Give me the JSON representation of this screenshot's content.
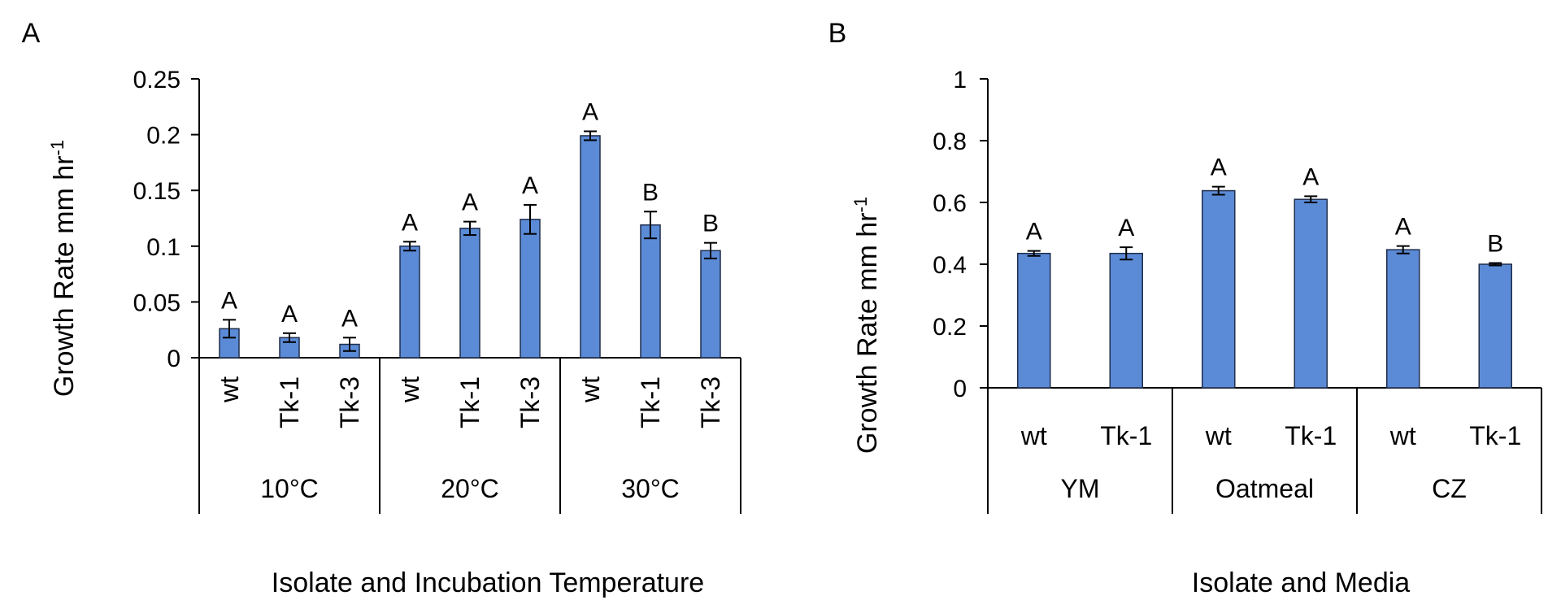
{
  "chart_data": [
    {
      "panel_label": "A",
      "type": "bar",
      "ylabel": "Growth Rate mm hr",
      "ylabel_sup": "-1",
      "xlabel": "Isolate and Incubation Temperature",
      "ylim": [
        0,
        0.25
      ],
      "yticks": [
        0,
        0.05,
        0.1,
        0.15,
        0.2,
        0.25
      ],
      "ytick_labels": [
        "0",
        "0.05",
        "0.1",
        "0.15",
        "0.2",
        "0.25"
      ],
      "groups": [
        {
          "label": "10°C",
          "bars": [
            {
              "category": "wt",
              "value": 0.026,
              "error": 0.008,
              "letter": "A"
            },
            {
              "category": "Tk-1",
              "value": 0.018,
              "error": 0.004,
              "letter": "A"
            },
            {
              "category": "Tk-3",
              "value": 0.012,
              "error": 0.006,
              "letter": "A"
            }
          ]
        },
        {
          "label": "20°C",
          "bars": [
            {
              "category": "wt",
              "value": 0.1,
              "error": 0.004,
              "letter": "A"
            },
            {
              "category": "Tk-1",
              "value": 0.116,
              "error": 0.006,
              "letter": "A"
            },
            {
              "category": "Tk-3",
              "value": 0.124,
              "error": 0.013,
              "letter": "A"
            }
          ]
        },
        {
          "label": "30°C",
          "bars": [
            {
              "category": "wt",
              "value": 0.199,
              "error": 0.004,
              "letter": "A"
            },
            {
              "category": "Tk-1",
              "value": 0.119,
              "error": 0.012,
              "letter": "B"
            },
            {
              "category": "Tk-3",
              "value": 0.096,
              "error": 0.007,
              "letter": "B"
            }
          ]
        }
      ]
    },
    {
      "panel_label": "B",
      "type": "bar",
      "ylabel": "Growth Rate mm hr",
      "ylabel_sup": "-1",
      "xlabel": "Isolate and Media",
      "ylim": [
        0,
        1
      ],
      "yticks": [
        0,
        0.2,
        0.4,
        0.6,
        0.8,
        1
      ],
      "ytick_labels": [
        "0",
        "0.2",
        "0.4",
        "0.6",
        "0.8",
        "1"
      ],
      "groups": [
        {
          "label": "YM",
          "bars": [
            {
              "category": "wt",
              "value": 0.435,
              "error": 0.008,
              "letter": "A"
            },
            {
              "category": "Tk-1",
              "value": 0.435,
              "error": 0.02,
              "letter": "A"
            }
          ]
        },
        {
          "label": "Oatmeal",
          "bars": [
            {
              "category": "wt",
              "value": 0.638,
              "error": 0.013,
              "letter": "A"
            },
            {
              "category": "Tk-1",
              "value": 0.61,
              "error": 0.01,
              "letter": "A"
            }
          ]
        },
        {
          "label": "CZ",
          "bars": [
            {
              "category": "wt",
              "value": 0.447,
              "error": 0.012,
              "letter": "A"
            },
            {
              "category": "Tk-1",
              "value": 0.4,
              "error": 0.004,
              "letter": "B"
            }
          ]
        }
      ]
    }
  ],
  "colors": {
    "bar_fill": "#5b8bd6",
    "bar_stroke": "#1f2d4a",
    "axis": "#000000"
  }
}
